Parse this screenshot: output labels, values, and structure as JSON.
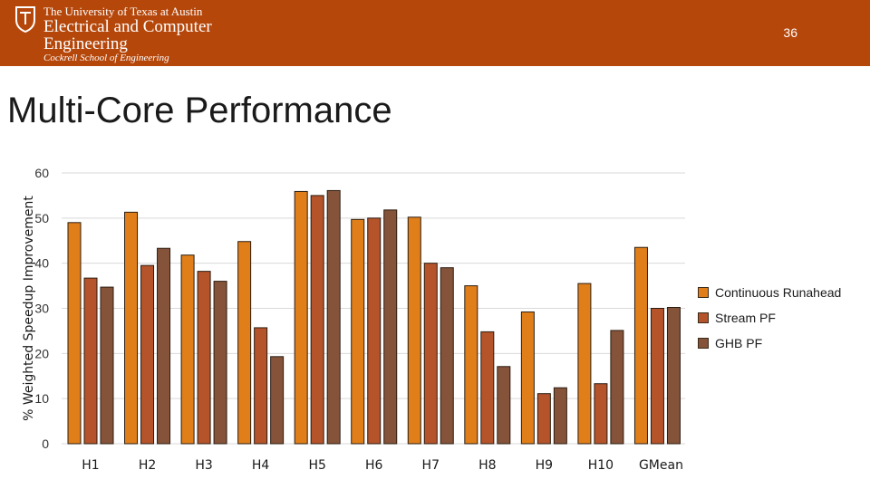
{
  "header": {
    "org_line1": "The University of Texas at Austin",
    "org_line2": "Electrical and Computer",
    "org_line3": "Engineering",
    "org_line4": "Cockrell School of Engineering",
    "slide_number": "36",
    "logo_icon": "ut-shield-icon",
    "background": "#b5470b"
  },
  "slide": {
    "title": "Multi-Core Performance"
  },
  "chart_data": {
    "type": "bar",
    "categories": [
      "H1",
      "H2",
      "H3",
      "H4",
      "H5",
      "H6",
      "H7",
      "H8",
      "H9",
      "H10",
      "GMean"
    ],
    "series": [
      {
        "name": "Continuous Runahead",
        "color": "#e07f1a",
        "values": [
          49,
          51.3,
          41.8,
          44.8,
          55.9,
          49.7,
          50.2,
          35,
          29.2,
          35.5,
          43.5
        ]
      },
      {
        "name": "Stream PF",
        "color": "#b5532a",
        "values": [
          36.7,
          39.5,
          38.2,
          25.7,
          55,
          50,
          40,
          24.8,
          11.1,
          13.3,
          30
        ]
      },
      {
        "name": "GHB PF",
        "color": "#855339",
        "values": [
          34.7,
          43.3,
          36,
          19.3,
          56.1,
          51.8,
          39,
          17.1,
          12.4,
          25.1,
          30.2
        ]
      }
    ],
    "ylabel": "% Weighted Speedup Improvement",
    "xlabel": "",
    "ylim": [
      0,
      60
    ],
    "yticks": [
      "0",
      "10",
      "20",
      "30",
      "40",
      "50",
      "60"
    ],
    "grid": true,
    "legend_position": "right"
  }
}
